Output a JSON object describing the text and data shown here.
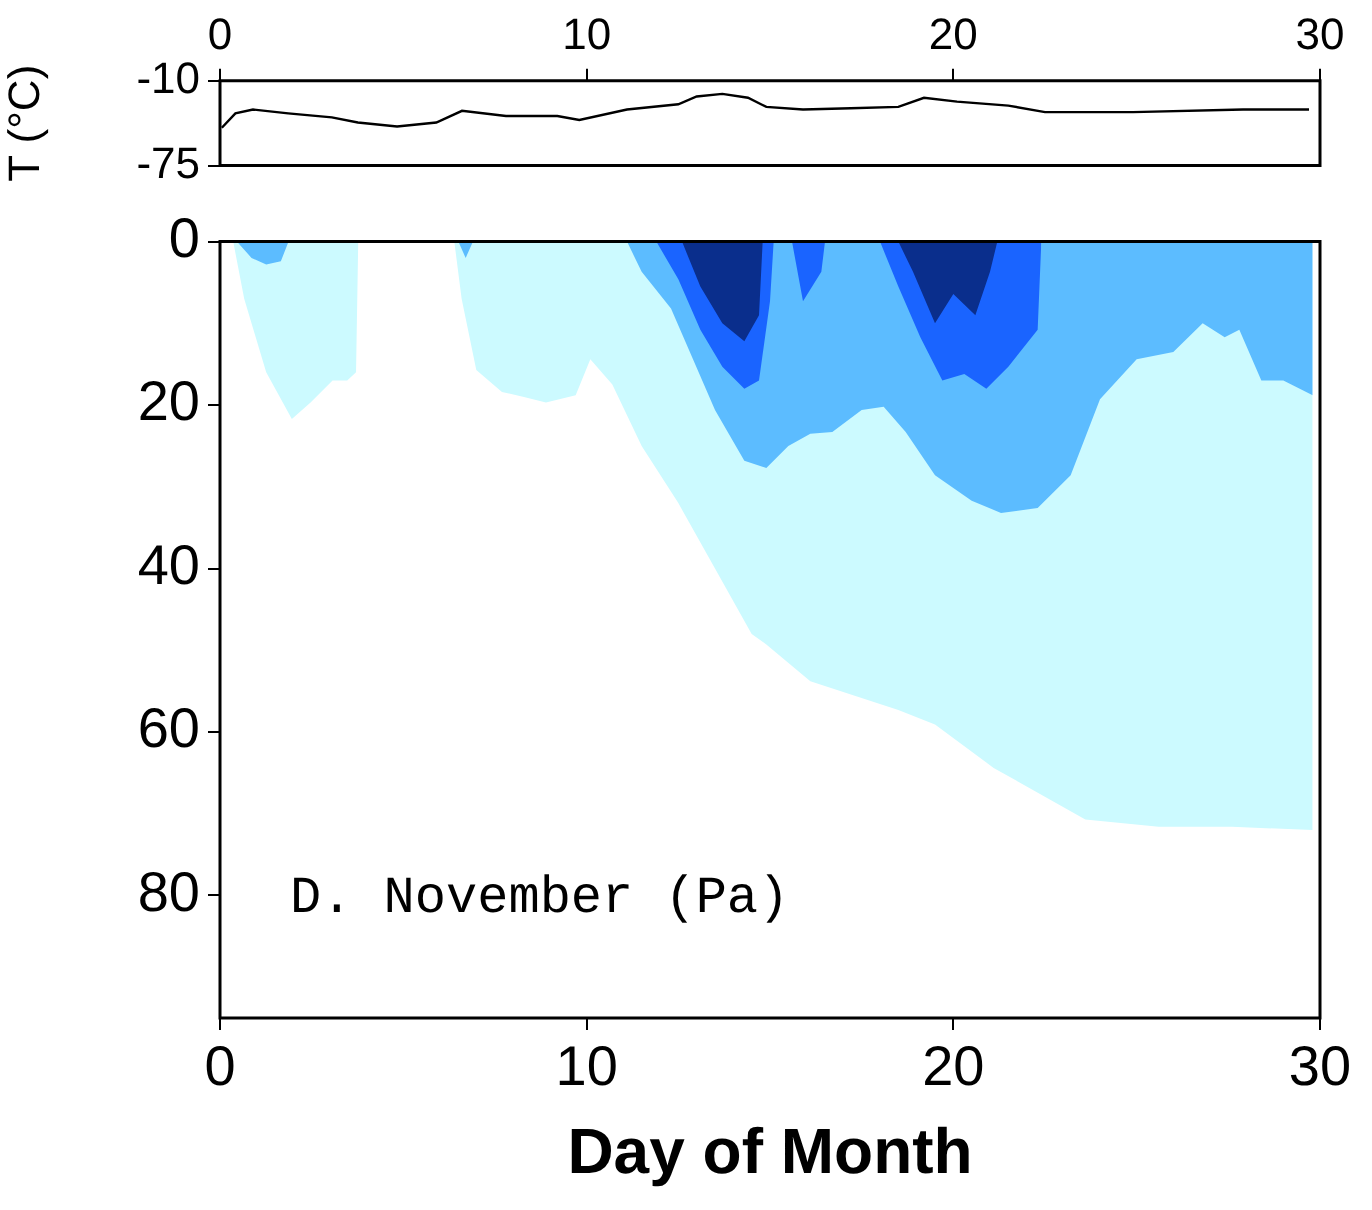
{
  "chart_data": [
    {
      "type": "line",
      "ylabel": "T (°C)",
      "xlim": [
        0,
        30
      ],
      "xticks": [
        0,
        10,
        20,
        30
      ],
      "ylim": [
        -75,
        -10
      ],
      "yticks": [
        -75,
        -10
      ],
      "grid": false,
      "legend": false,
      "marker": "none",
      "x": [
        0.05,
        0.42,
        0.9,
        1.86,
        3.05,
        3.76,
        4.83,
        5.9,
        6.6,
        7.8,
        9.2,
        9.8,
        11.1,
        12.5,
        13.0,
        13.7,
        14.4,
        14.9,
        15.9,
        17.2,
        18.5,
        19.2,
        20.1,
        21.5,
        22.5,
        24.9,
        27.9,
        29.7
      ],
      "series": [
        {
          "color": "#000000",
          "values": [
            -46,
            -35,
            -32,
            -35,
            -38,
            -42,
            -45,
            -42,
            -33,
            -37,
            -37,
            -40,
            -32,
            -28,
            -22,
            -20,
            -23,
            -30,
            -32,
            -31,
            -30,
            -23,
            -26,
            -29,
            -34,
            -34,
            -32,
            -32
          ]
        }
      ]
    },
    {
      "type": "area",
      "xlabel": "Day of Month",
      "annotations": [
        "D. November (Pa)"
      ],
      "xlim": [
        0,
        30
      ],
      "xticks": [
        0,
        10,
        20,
        30
      ],
      "ylim": [
        95,
        0
      ],
      "yticks": [
        0,
        20,
        40,
        60,
        80
      ],
      "grid": false,
      "legend": false,
      "series": [
        {
          "color": "#ccfaff",
          "x": [
            0.36,
            0.66,
            1.26,
            1.96,
            2.47,
            3.07,
            3.47,
            3.71,
            3.77,
            6.39,
            6.59,
            6.99,
            7.69,
            8.29,
            8.89,
            9.7,
            10.1,
            10.7,
            11.5,
            12.5,
            13.5,
            14.5,
            14.9,
            16.1,
            18.5,
            19.5,
            21.1,
            23.6,
            25.6,
            27.6,
            29.8
          ],
          "values": [
            0,
            7,
            16,
            21.7,
            19.7,
            17,
            17,
            16,
            0,
            0,
            7,
            15.7,
            18.4,
            19,
            19.7,
            18.8,
            14.4,
            17.5,
            25,
            32,
            40,
            48,
            49.3,
            53.8,
            57.3,
            59.1,
            64.4,
            70.7,
            71.6,
            71.6,
            72
          ]
        },
        {
          "color": "#5cbcff",
          "x": [
            0.46,
            0.86,
            1.26,
            1.66,
            1.87,
            6.5,
            6.7,
            6.9,
            11.1,
            11.5,
            12.3,
            12.9,
            13.5,
            14.3,
            14.9,
            15.5,
            16.1,
            16.7,
            17.5,
            18.1,
            18.7,
            19.5,
            20.5,
            21.3,
            22.3,
            23.2,
            24,
            25,
            26,
            26.8,
            27.4,
            27.8,
            28.4,
            29,
            29.8
          ],
          "values": [
            0,
            2,
            2.8,
            2.4,
            0,
            0,
            2,
            0,
            0,
            3.7,
            8.2,
            14.4,
            20.6,
            26.8,
            27.7,
            25,
            23.5,
            23.3,
            20.6,
            20.2,
            23.3,
            28.6,
            31.7,
            33.2,
            32.6,
            28.6,
            19.3,
            14.4,
            13.5,
            10,
            11.7,
            10.8,
            17,
            17,
            18.8
          ]
        },
        {
          "color": "#1a64ff",
          "x": [
            11.9,
            12.5,
            13.1,
            13.7,
            14.3,
            14.7,
            15.0,
            15.1,
            15.6,
            15.9,
            16.4,
            16.5,
            18.0,
            18.5,
            19.1,
            19.7,
            20.3,
            20.9,
            21.5,
            22.3,
            22.4
          ],
          "values": [
            0,
            4.6,
            10.8,
            15.3,
            18,
            17,
            7.3,
            0,
            0,
            7.3,
            3.7,
            0,
            0,
            5.5,
            11.7,
            17,
            16.2,
            18,
            15.3,
            10.8,
            0
          ]
        },
        {
          "color": "#0a2e8c",
          "x": [
            12.6,
            13.1,
            13.7,
            14.3,
            14.7,
            14.8,
            18.5,
            18.9,
            19.5,
            20.0,
            20.6,
            21.0,
            21.2
          ],
          "values": [
            0,
            5.5,
            10,
            12.2,
            9,
            0,
            0,
            3.7,
            10,
            6.4,
            9,
            3.7,
            0
          ]
        }
      ]
    }
  ]
}
